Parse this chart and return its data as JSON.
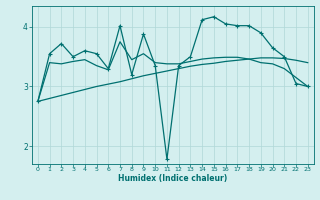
{
  "xlabel": "Humidex (Indice chaleur)",
  "bg_color": "#d4efef",
  "line_color": "#007070",
  "grid_color": "#b0d8d8",
  "xlim": [
    -0.5,
    23.5
  ],
  "ylim": [
    1.7,
    4.35
  ],
  "yticks": [
    2,
    3,
    4
  ],
  "xticks": [
    0,
    1,
    2,
    3,
    4,
    5,
    6,
    7,
    8,
    9,
    10,
    11,
    12,
    13,
    14,
    15,
    16,
    17,
    18,
    19,
    20,
    21,
    22,
    23
  ],
  "series": [
    {
      "x": [
        0,
        1,
        2,
        3,
        4,
        5,
        6,
        7,
        8,
        9,
        10,
        11,
        12,
        13,
        14,
        15,
        16,
        17,
        18,
        19,
        20,
        21,
        22,
        23
      ],
      "y": [
        2.75,
        3.55,
        3.72,
        3.5,
        3.6,
        3.55,
        3.3,
        4.02,
        3.2,
        3.88,
        3.35,
        1.78,
        3.35,
        3.5,
        4.12,
        4.17,
        4.05,
        4.02,
        4.02,
        3.9,
        3.65,
        3.5,
        3.05,
        3.0
      ],
      "marker": "+",
      "lw": 0.9
    },
    {
      "x": [
        0,
        1,
        2,
        3,
        4,
        5,
        6,
        7,
        8,
        9,
        10,
        11,
        12,
        13,
        14,
        15,
        16,
        17,
        18,
        19,
        20,
        21,
        22,
        23
      ],
      "y": [
        2.75,
        3.4,
        3.38,
        3.42,
        3.45,
        3.35,
        3.28,
        3.75,
        3.45,
        3.55,
        3.4,
        3.38,
        3.38,
        3.42,
        3.46,
        3.48,
        3.49,
        3.49,
        3.46,
        3.4,
        3.38,
        3.3,
        3.15,
        3.0
      ],
      "marker": null,
      "lw": 0.9
    },
    {
      "x": [
        0,
        2,
        3,
        5,
        7,
        9,
        10,
        11,
        12,
        13,
        14,
        15,
        16,
        17,
        18,
        19,
        20,
        21,
        22,
        23
      ],
      "y": [
        2.75,
        2.85,
        2.9,
        3.0,
        3.08,
        3.18,
        3.22,
        3.26,
        3.3,
        3.34,
        3.37,
        3.39,
        3.42,
        3.44,
        3.46,
        3.48,
        3.48,
        3.47,
        3.44,
        3.4
      ],
      "marker": null,
      "lw": 0.9
    }
  ]
}
